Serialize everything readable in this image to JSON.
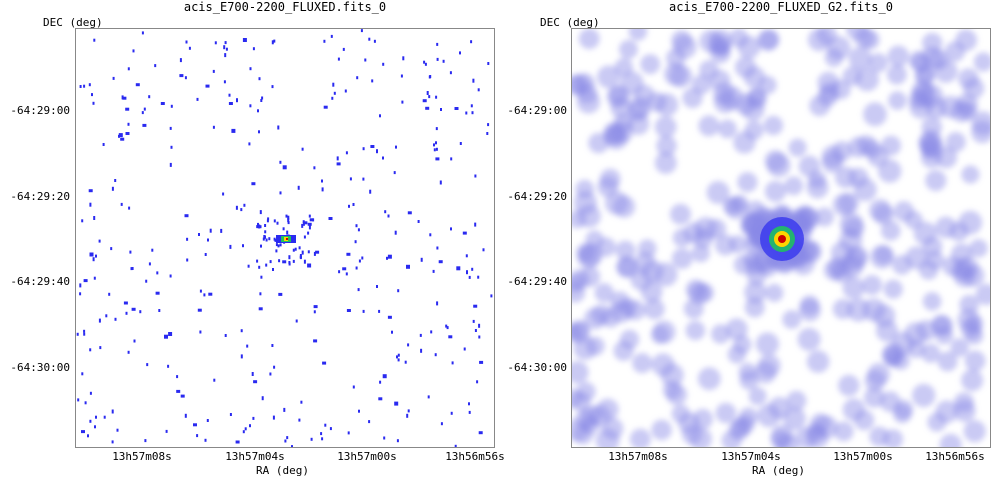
{
  "panels": [
    {
      "title": "acis_E700-2200_FLUXED.fits_0",
      "ylabel": "DEC (deg)",
      "xlabel": "RA (deg)",
      "yticks": [
        "-64:29:00",
        "-64:29:20",
        "-64:29:40",
        "-64:30:00"
      ],
      "xticks": [
        "13h57m08s",
        "13h57m04s",
        "13h57m00s",
        "13h56m56s"
      ]
    },
    {
      "title": "acis_E700-2200_FLUXED_G2.fits_0",
      "ylabel": "DEC (deg)",
      "xlabel": "RA (deg)",
      "yticks": [
        "-64:29:00",
        "-64:29:20",
        "-64:29:40",
        "-64:30:00"
      ],
      "xticks": [
        "13h57m08s",
        "13h57m04s",
        "13h57m00s",
        "13h56m56s"
      ]
    }
  ],
  "colors": {
    "event": "#2a2af0",
    "smoothed": "#8a8ae6",
    "source_core": "#cc0000",
    "source_mid": "#ffd400",
    "source_outer": "#20c060"
  }
}
